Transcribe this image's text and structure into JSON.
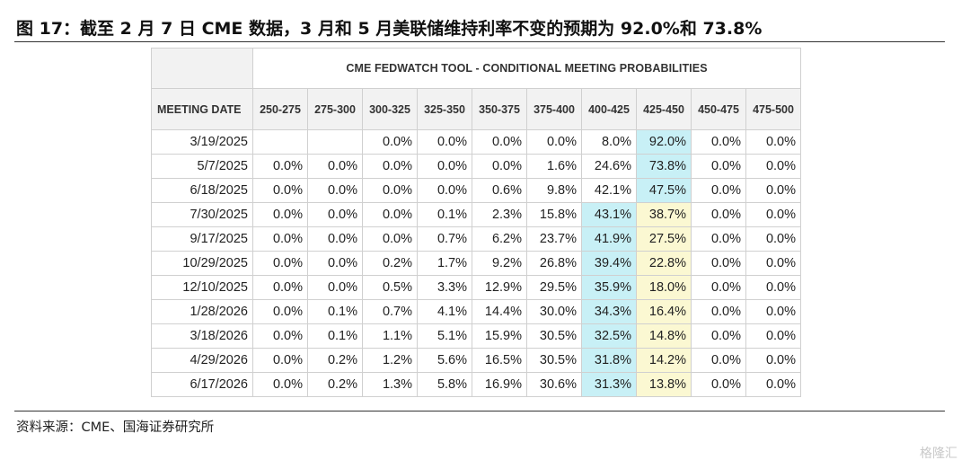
{
  "figure_title": "图 17：截至 2 月 7 日 CME 数据，3 月和 5 月美联储维持利率不变的预期为 92.0%和 73.8%",
  "source": "资料来源：CME、国海证券研究所",
  "watermark": "格隆汇",
  "table": {
    "title": "CME FEDWATCH TOOL - CONDITIONAL MEETING PROBABILITIES",
    "date_header": "MEETING DATE",
    "columns": [
      "250-275",
      "275-300",
      "300-325",
      "325-350",
      "350-375",
      "375-400",
      "400-425",
      "425-450",
      "450-475",
      "475-500"
    ],
    "rows": [
      {
        "date": "3/19/2025",
        "values": [
          "",
          "",
          "0.0%",
          "0.0%",
          "0.0%",
          "0.0%",
          "8.0%",
          "92.0%",
          "0.0%",
          "0.0%"
        ],
        "hl": [
          null,
          null,
          null,
          null,
          null,
          null,
          null,
          "blue",
          null,
          null
        ]
      },
      {
        "date": "5/7/2025",
        "values": [
          "0.0%",
          "0.0%",
          "0.0%",
          "0.0%",
          "0.0%",
          "1.6%",
          "24.6%",
          "73.8%",
          "0.0%",
          "0.0%"
        ],
        "hl": [
          null,
          null,
          null,
          null,
          null,
          null,
          null,
          "blue",
          null,
          null
        ]
      },
      {
        "date": "6/18/2025",
        "values": [
          "0.0%",
          "0.0%",
          "0.0%",
          "0.0%",
          "0.6%",
          "9.8%",
          "42.1%",
          "47.5%",
          "0.0%",
          "0.0%"
        ],
        "hl": [
          null,
          null,
          null,
          null,
          null,
          null,
          null,
          "blue",
          null,
          null
        ]
      },
      {
        "date": "7/30/2025",
        "values": [
          "0.0%",
          "0.0%",
          "0.0%",
          "0.1%",
          "2.3%",
          "15.8%",
          "43.1%",
          "38.7%",
          "0.0%",
          "0.0%"
        ],
        "hl": [
          null,
          null,
          null,
          null,
          null,
          null,
          "blue",
          "yellow",
          null,
          null
        ]
      },
      {
        "date": "9/17/2025",
        "values": [
          "0.0%",
          "0.0%",
          "0.0%",
          "0.7%",
          "6.2%",
          "23.7%",
          "41.9%",
          "27.5%",
          "0.0%",
          "0.0%"
        ],
        "hl": [
          null,
          null,
          null,
          null,
          null,
          null,
          "blue",
          "yellow",
          null,
          null
        ]
      },
      {
        "date": "10/29/2025",
        "values": [
          "0.0%",
          "0.0%",
          "0.2%",
          "1.7%",
          "9.2%",
          "26.8%",
          "39.4%",
          "22.8%",
          "0.0%",
          "0.0%"
        ],
        "hl": [
          null,
          null,
          null,
          null,
          null,
          null,
          "blue",
          "yellow",
          null,
          null
        ]
      },
      {
        "date": "12/10/2025",
        "values": [
          "0.0%",
          "0.0%",
          "0.5%",
          "3.3%",
          "12.9%",
          "29.5%",
          "35.9%",
          "18.0%",
          "0.0%",
          "0.0%"
        ],
        "hl": [
          null,
          null,
          null,
          null,
          null,
          null,
          "blue",
          "yellow",
          null,
          null
        ]
      },
      {
        "date": "1/28/2026",
        "values": [
          "0.0%",
          "0.1%",
          "0.7%",
          "4.1%",
          "14.4%",
          "30.0%",
          "34.3%",
          "16.4%",
          "0.0%",
          "0.0%"
        ],
        "hl": [
          null,
          null,
          null,
          null,
          null,
          null,
          "blue",
          "yellow",
          null,
          null
        ]
      },
      {
        "date": "3/18/2026",
        "values": [
          "0.0%",
          "0.1%",
          "1.1%",
          "5.1%",
          "15.9%",
          "30.5%",
          "32.5%",
          "14.8%",
          "0.0%",
          "0.0%"
        ],
        "hl": [
          null,
          null,
          null,
          null,
          null,
          null,
          "blue",
          "yellow",
          null,
          null
        ]
      },
      {
        "date": "4/29/2026",
        "values": [
          "0.0%",
          "0.2%",
          "1.2%",
          "5.6%",
          "16.5%",
          "30.5%",
          "31.8%",
          "14.2%",
          "0.0%",
          "0.0%"
        ],
        "hl": [
          null,
          null,
          null,
          null,
          null,
          null,
          "blue",
          "yellow",
          null,
          null
        ]
      },
      {
        "date": "6/17/2026",
        "values": [
          "0.0%",
          "0.2%",
          "1.3%",
          "5.8%",
          "16.9%",
          "30.6%",
          "31.3%",
          "13.8%",
          "0.0%",
          "0.0%"
        ],
        "hl": [
          null,
          null,
          null,
          null,
          null,
          null,
          "blue",
          "yellow",
          null,
          null
        ]
      }
    ]
  }
}
